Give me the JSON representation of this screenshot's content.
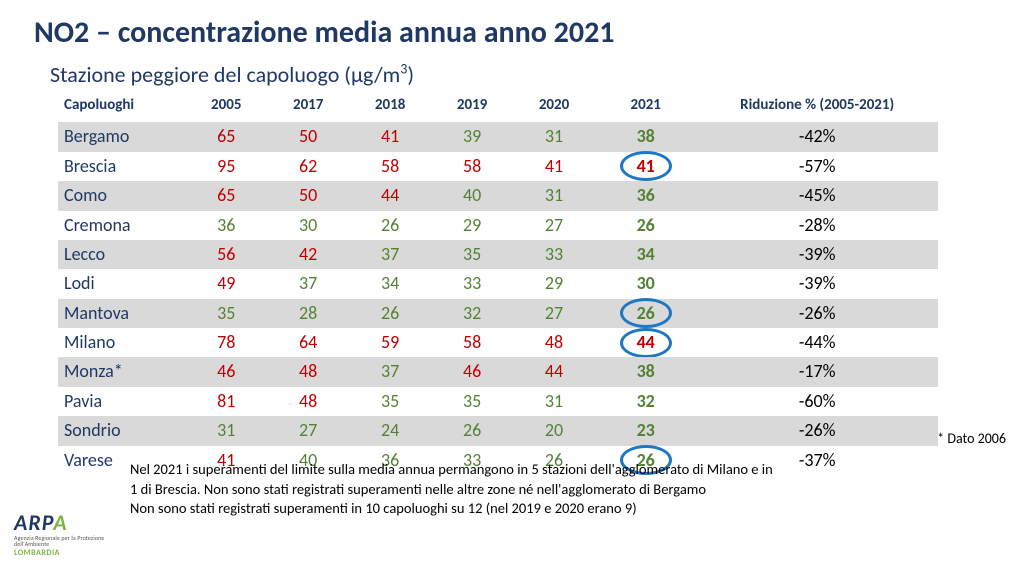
{
  "colors": {
    "text_primary": "#1f3864",
    "red": "#c00000",
    "green": "#548235",
    "black": "#000000",
    "stripe": "#d9d9d9",
    "circle": "#1f77c4",
    "logo_accent": "#7cb342"
  },
  "title": "NO2 – concentrazione media annua anno 2021",
  "subtitle_html": "Stazione peggiore del capoluogo (µg/m³)",
  "headers": {
    "city": "Capoluoghi",
    "y2005": "2005",
    "y2017": "2017",
    "y2018": "2018",
    "y2019": "2019",
    "y2020": "2020",
    "y2021": "2021",
    "reduction": "Riduzione % (2005-2021)"
  },
  "rows": [
    {
      "city": "Bergamo",
      "stripe": true,
      "vals": [
        {
          "v": "65",
          "c": "red"
        },
        {
          "v": "50",
          "c": "red"
        },
        {
          "v": "41",
          "c": "red"
        },
        {
          "v": "39",
          "c": "green"
        },
        {
          "v": "31",
          "c": "green"
        }
      ],
      "v21": {
        "v": "38",
        "c": "green",
        "circled": false
      },
      "red": "-42%"
    },
    {
      "city": "Brescia",
      "stripe": false,
      "vals": [
        {
          "v": "95",
          "c": "red"
        },
        {
          "v": "62",
          "c": "red"
        },
        {
          "v": "58",
          "c": "red"
        },
        {
          "v": "58",
          "c": "red"
        },
        {
          "v": "41",
          "c": "red"
        }
      ],
      "v21": {
        "v": "41",
        "c": "red",
        "circled": true
      },
      "red": "-57%"
    },
    {
      "city": "Como",
      "stripe": true,
      "vals": [
        {
          "v": "65",
          "c": "red"
        },
        {
          "v": "50",
          "c": "red"
        },
        {
          "v": "44",
          "c": "red"
        },
        {
          "v": "40",
          "c": "green"
        },
        {
          "v": "31",
          "c": "green"
        }
      ],
      "v21": {
        "v": "36",
        "c": "green",
        "circled": false
      },
      "red": "-45%"
    },
    {
      "city": "Cremona",
      "stripe": false,
      "vals": [
        {
          "v": "36",
          "c": "green"
        },
        {
          "v": "30",
          "c": "green"
        },
        {
          "v": "26",
          "c": "green"
        },
        {
          "v": "29",
          "c": "green"
        },
        {
          "v": "27",
          "c": "green"
        }
      ],
      "v21": {
        "v": "26",
        "c": "green",
        "circled": false
      },
      "red": "-28%"
    },
    {
      "city": "Lecco",
      "stripe": true,
      "vals": [
        {
          "v": "56",
          "c": "red"
        },
        {
          "v": "42",
          "c": "red"
        },
        {
          "v": "37",
          "c": "green"
        },
        {
          "v": "35",
          "c": "green"
        },
        {
          "v": "33",
          "c": "green"
        }
      ],
      "v21": {
        "v": "34",
        "c": "green",
        "circled": false
      },
      "red": "-39%"
    },
    {
      "city": "Lodi",
      "stripe": false,
      "vals": [
        {
          "v": "49",
          "c": "red"
        },
        {
          "v": "37",
          "c": "green"
        },
        {
          "v": "34",
          "c": "green"
        },
        {
          "v": "33",
          "c": "green"
        },
        {
          "v": "29",
          "c": "green"
        }
      ],
      "v21": {
        "v": "30",
        "c": "green",
        "circled": false
      },
      "red": "-39%"
    },
    {
      "city": "Mantova",
      "stripe": true,
      "vals": [
        {
          "v": "35",
          "c": "green"
        },
        {
          "v": "28",
          "c": "green"
        },
        {
          "v": "26",
          "c": "green"
        },
        {
          "v": "32",
          "c": "green"
        },
        {
          "v": "27",
          "c": "green"
        }
      ],
      "v21": {
        "v": "26",
        "c": "green",
        "circled": true
      },
      "red": "-26%"
    },
    {
      "city": "Milano",
      "stripe": false,
      "vals": [
        {
          "v": "78",
          "c": "red"
        },
        {
          "v": "64",
          "c": "red"
        },
        {
          "v": "59",
          "c": "red"
        },
        {
          "v": "58",
          "c": "red"
        },
        {
          "v": "48",
          "c": "red"
        }
      ],
      "v21": {
        "v": "44",
        "c": "red",
        "circled": true
      },
      "red": "-44%"
    },
    {
      "city": "Monza*",
      "stripe": true,
      "vals": [
        {
          "v": "46",
          "c": "red"
        },
        {
          "v": "48",
          "c": "red"
        },
        {
          "v": "37",
          "c": "green"
        },
        {
          "v": "46",
          "c": "red"
        },
        {
          "v": "44",
          "c": "red"
        }
      ],
      "v21": {
        "v": "38",
        "c": "green",
        "circled": false
      },
      "red": "-17%"
    },
    {
      "city": "Pavia",
      "stripe": false,
      "vals": [
        {
          "v": "81",
          "c": "red"
        },
        {
          "v": "48",
          "c": "red"
        },
        {
          "v": "35",
          "c": "green"
        },
        {
          "v": "35",
          "c": "green"
        },
        {
          "v": "31",
          "c": "green"
        }
      ],
      "v21": {
        "v": "32",
        "c": "green",
        "circled": false
      },
      "red": "-60%"
    },
    {
      "city": "Sondrio",
      "stripe": true,
      "vals": [
        {
          "v": "31",
          "c": "green"
        },
        {
          "v": "27",
          "c": "green"
        },
        {
          "v": "24",
          "c": "green"
        },
        {
          "v": "26",
          "c": "green"
        },
        {
          "v": "20",
          "c": "green"
        }
      ],
      "v21": {
        "v": "23",
        "c": "green",
        "circled": false
      },
      "red": "-26%"
    },
    {
      "city": "Varese",
      "stripe": false,
      "vals": [
        {
          "v": "41",
          "c": "red"
        },
        {
          "v": "40",
          "c": "green"
        },
        {
          "v": "36",
          "c": "green"
        },
        {
          "v": "33",
          "c": "green"
        },
        {
          "v": "26",
          "c": "green"
        }
      ],
      "v21": {
        "v": "26",
        "c": "green",
        "circled": true
      },
      "red": "-37%"
    }
  ],
  "footnote_right": "* Dato 2006",
  "notes": {
    "line1": "Nel 2021 i superamenti del limite sulla media annua permangono in 5 stazioni dell'agglomerato di Milano e in",
    "line2": "1 di Brescia. Non sono stati registrati superamenti nelle altre zone né nell'agglomerato di Bergamo",
    "line3": "Non sono stati registrati superamenti in 10 capoluoghi su 12 (nel 2019 e 2020 erano 9)"
  },
  "logo": {
    "brand_pre": "ARP",
    "brand_accent": "A",
    "region": "LOMBARDIA",
    "sub": "Agenzia Regionale per la Protezione dell'Ambiente"
  }
}
